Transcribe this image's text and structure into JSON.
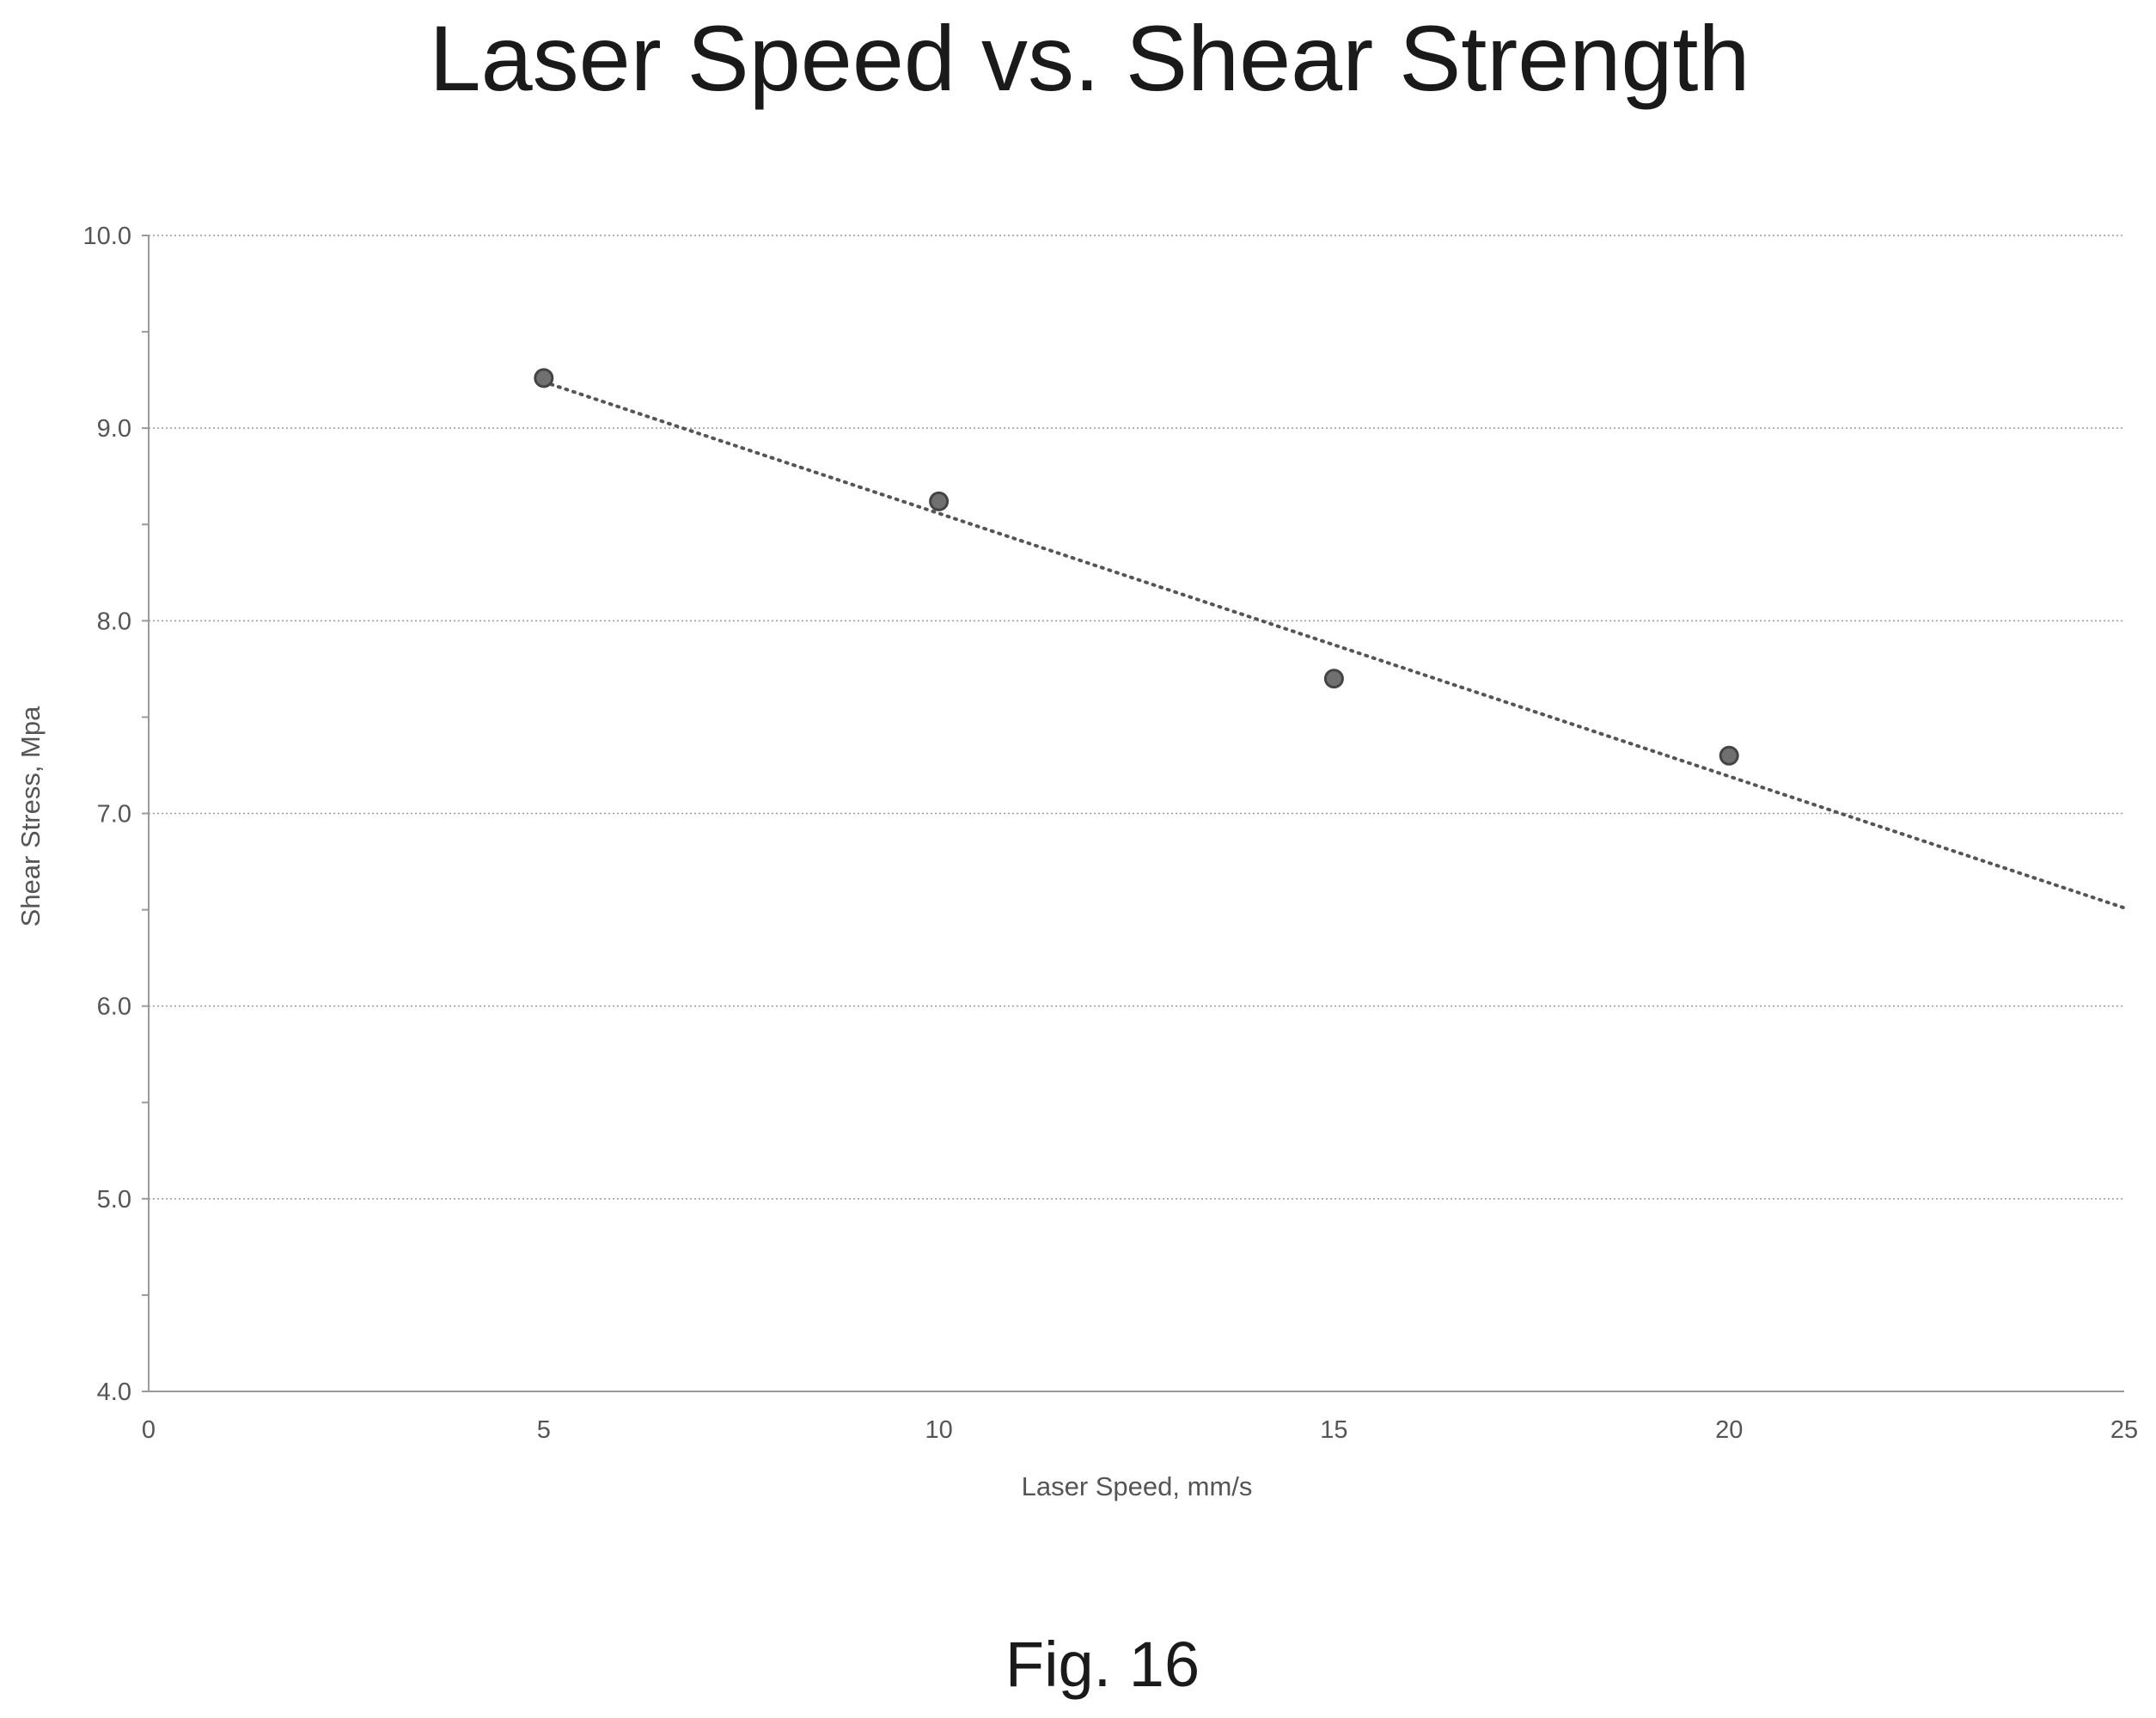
{
  "chart_data": {
    "type": "scatter",
    "title": "Laser Speed vs. Shear Strength",
    "xlabel": "Laser Speed, mm/s",
    "ylabel": "Shear Stress, Mpa",
    "xlim": [
      0,
      25
    ],
    "ylim": [
      4.0,
      10.0
    ],
    "x_ticks": [
      "0",
      "5",
      "10",
      "15",
      "20",
      "25"
    ],
    "y_ticks": [
      "4.0",
      "5.0",
      "6.0",
      "7.0",
      "8.0",
      "9.0",
      "10.0"
    ],
    "grid": "horizontal dotted",
    "legend": "none",
    "series": [
      {
        "x": [
          5,
          10,
          15,
          20
        ],
        "y": [
          9.26,
          8.62,
          7.7,
          7.3
        ]
      }
    ],
    "trendline": {
      "style": "dotted",
      "points": [
        [
          5,
          9.24
        ],
        [
          25,
          6.51
        ]
      ]
    }
  },
  "caption": "Fig. 16"
}
